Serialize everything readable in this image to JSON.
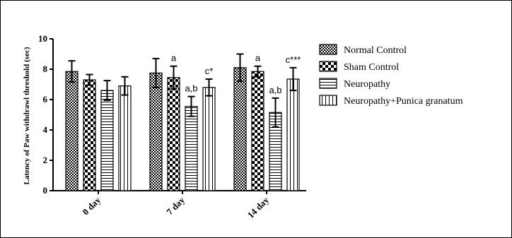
{
  "chart_data": {
    "type": "bar",
    "ylabel": "Latency of Paw withdrawl threshold (sec)",
    "xlabel": "",
    "ylim": [
      0,
      10
    ],
    "yticks": [
      0,
      2,
      4,
      6,
      8,
      10
    ],
    "categories": [
      "0 day",
      "7 day",
      "14 day"
    ],
    "series": [
      {
        "name": "Normal Control",
        "pattern": "checker",
        "values": [
          7.85,
          7.75,
          8.1
        ],
        "errors": [
          0.7,
          0.95,
          0.9
        ]
      },
      {
        "name": "Sham Control",
        "pattern": "diamond",
        "values": [
          7.3,
          7.45,
          7.85
        ],
        "errors": [
          0.35,
          0.75,
          0.35
        ]
      },
      {
        "name": "Neuropathy",
        "pattern": "hlines",
        "values": [
          6.6,
          5.55,
          5.15
        ],
        "errors": [
          0.65,
          0.65,
          0.95
        ]
      },
      {
        "name": "Neuropathy+Punica granatum",
        "pattern": "vlines",
        "values": [
          6.9,
          6.8,
          7.35
        ],
        "errors": [
          0.6,
          0.55,
          0.75
        ]
      }
    ],
    "annotations": [
      {
        "category": 1,
        "series": 1,
        "text": "a"
      },
      {
        "category": 1,
        "series": 2,
        "text": "a,b"
      },
      {
        "category": 1,
        "series": 3,
        "text": "c*"
      },
      {
        "category": 2,
        "series": 1,
        "text": "a"
      },
      {
        "category": 2,
        "series": 2,
        "text": "a,b"
      },
      {
        "category": 2,
        "series": 3,
        "text": "c***"
      }
    ],
    "legend_position": "right",
    "grid": false
  }
}
